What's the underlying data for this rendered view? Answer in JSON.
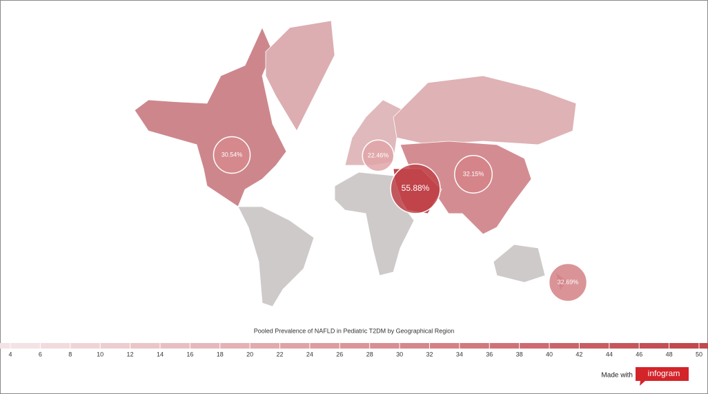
{
  "map": {
    "title": "Pooled Prevalence of NAFLD in Pediatric T2DM by Geographical Region",
    "regions": [
      {
        "value": 30.54,
        "label": "30.54%"
      },
      {
        "value": 22.46,
        "label": "22.46%"
      },
      {
        "value": 55.88,
        "label": "55.88%"
      },
      {
        "value": 32.15,
        "label": "32.15%"
      },
      {
        "value": 32.69,
        "label": "32.69%"
      }
    ],
    "scale": {
      "ticks": [
        4,
        6,
        8,
        10,
        12,
        14,
        16,
        18,
        20,
        22,
        24,
        26,
        28,
        30,
        32,
        34,
        36,
        38,
        40,
        42,
        44,
        46,
        48,
        50
      ],
      "colors": [
        "#f5e6e7",
        "#c0444a"
      ]
    }
  },
  "footer": {
    "made_with": "Made with",
    "brand": "infogram"
  }
}
